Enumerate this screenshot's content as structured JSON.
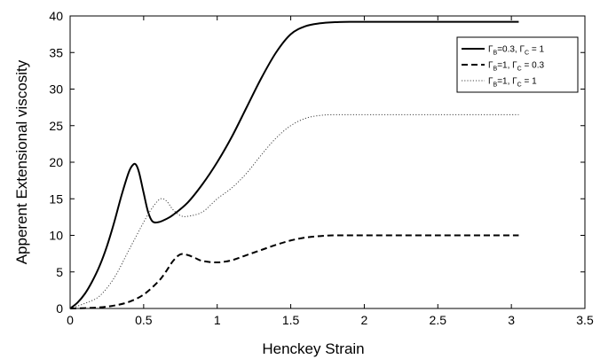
{
  "chart_data": {
    "type": "line",
    "title": "",
    "xlabel": "Henckey Strain",
    "ylabel": "Apperent Extensional viscosity",
    "xlim": [
      0,
      3.5
    ],
    "ylim": [
      0,
      40
    ],
    "x_ticks": [
      "0",
      "0.5",
      "1",
      "1.5",
      "2",
      "2.5",
      "3",
      "3.5"
    ],
    "y_ticks": [
      "0",
      "5",
      "10",
      "15",
      "20",
      "25",
      "30",
      "35",
      "40"
    ],
    "grid": false,
    "legend_position": "top-right",
    "series": [
      {
        "name": "Γ_B=0.3, Γ_C = 1",
        "legend": {
          "g1": "Γ",
          "s1": "B",
          "mid": "=0.3, ",
          "g2": "Γ",
          "s2": "C",
          "tail": " = 1"
        },
        "style": "solid",
        "color": "#000000",
        "x": [
          0,
          0.05,
          0.1,
          0.15,
          0.2,
          0.25,
          0.3,
          0.35,
          0.4,
          0.43,
          0.45,
          0.47,
          0.5,
          0.53,
          0.56,
          0.6,
          0.65,
          0.7,
          0.8,
          0.9,
          1.0,
          1.1,
          1.2,
          1.3,
          1.4,
          1.5,
          1.6,
          1.7,
          1.8,
          1.9,
          2.0,
          2.5,
          3.05
        ],
        "y": [
          0,
          0.8,
          2.0,
          3.7,
          5.8,
          8.5,
          11.8,
          15.5,
          18.7,
          19.7,
          19.6,
          18.5,
          15.8,
          13.2,
          11.9,
          11.8,
          12.2,
          12.8,
          14.5,
          17.0,
          20.0,
          23.5,
          27.5,
          31.5,
          35.0,
          37.5,
          38.6,
          39.0,
          39.15,
          39.2,
          39.2,
          39.2,
          39.2
        ]
      },
      {
        "name": "Γ_B=1, Γ_C = 0.3",
        "legend": {
          "g1": "Γ",
          "s1": "B",
          "mid": "=1, ",
          "g2": "Γ",
          "s2": "C",
          "tail": " = 0.3"
        },
        "style": "dashed",
        "color": "#000000",
        "x": [
          0,
          0.1,
          0.2,
          0.3,
          0.4,
          0.5,
          0.6,
          0.65,
          0.7,
          0.75,
          0.8,
          0.85,
          0.9,
          1.0,
          1.1,
          1.2,
          1.3,
          1.4,
          1.5,
          1.6,
          1.7,
          1.8,
          2.0,
          2.5,
          3.05
        ],
        "y": [
          0,
          0.05,
          0.15,
          0.4,
          0.9,
          1.9,
          3.7,
          5.0,
          6.5,
          7.4,
          7.3,
          6.9,
          6.5,
          6.3,
          6.6,
          7.3,
          8.0,
          8.7,
          9.3,
          9.7,
          9.9,
          10.0,
          10.0,
          10.0,
          10.0
        ]
      },
      {
        "name": "Γ_B=1, Γ_C = 1",
        "legend": {
          "g1": "Γ",
          "s1": "B",
          "mid": "=1, ",
          "g2": "Γ",
          "s2": "C",
          "tail": " = 1"
        },
        "style": "dotted",
        "color": "#444444",
        "x": [
          0,
          0.1,
          0.2,
          0.3,
          0.4,
          0.5,
          0.55,
          0.6,
          0.63,
          0.66,
          0.7,
          0.75,
          0.8,
          0.9,
          1.0,
          1.1,
          1.2,
          1.3,
          1.4,
          1.5,
          1.6,
          1.7,
          1.8,
          2.0,
          2.5,
          3.05
        ],
        "y": [
          0,
          0.7,
          1.7,
          4.2,
          8.0,
          11.8,
          13.5,
          14.8,
          15.0,
          14.6,
          13.5,
          12.7,
          12.6,
          13.2,
          15.0,
          16.5,
          18.5,
          21.0,
          23.3,
          25.0,
          26.0,
          26.4,
          26.5,
          26.5,
          26.5,
          26.5
        ]
      }
    ]
  }
}
